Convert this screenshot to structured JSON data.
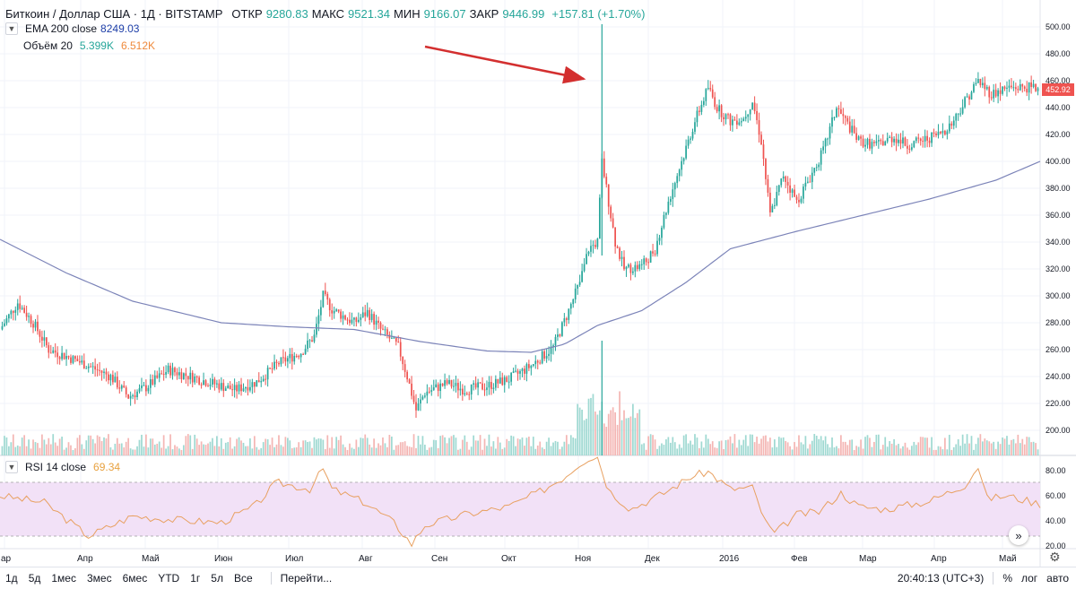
{
  "header": {
    "symbol": "Биткоин / Доллар США · 1Д · BITSTAMP",
    "open_label": "ОТКР",
    "open": "9280.83",
    "high_label": "МАКС",
    "high": "9521.34",
    "low_label": "МИН",
    "low": "9166.07",
    "close_label": "ЗАКР",
    "close": "9446.99",
    "change": "+157.81 (+1.70%)"
  },
  "indicators": {
    "ema_label": "EMA 200 close",
    "ema_value": "8249.03",
    "volume_label": "Объём 20",
    "volume_value1": "5.399K",
    "volume_value2": "6.512K",
    "rsi_label": "RSI 14 close",
    "rsi_value": "69.34"
  },
  "price_axis": [
    "500.00",
    "480.00",
    "460.00",
    "440.00",
    "420.00",
    "400.00",
    "380.00",
    "360.00",
    "340.00",
    "320.00",
    "300.00",
    "280.00",
    "260.00",
    "240.00",
    "220.00",
    "200.00"
  ],
  "rsi_axis": [
    "80.00",
    "60.00",
    "40.00",
    "20.00"
  ],
  "current_price": "452.92",
  "time_axis": [
    "ар",
    "Апр",
    "Май",
    "Июн",
    "Июл",
    "Авг",
    "Сен",
    "Окт",
    "Ноя",
    "Дек",
    "2016",
    "Фев",
    "Мар",
    "Апр",
    "Май"
  ],
  "bottom_bar": {
    "ranges": [
      "1д",
      "5д",
      "1мес",
      "3мес",
      "6мес",
      "YTD",
      "1г",
      "5л",
      "Все"
    ],
    "goto": "Перейти...",
    "time": "20:40:13 (UTC+3)",
    "percent": "%",
    "log": "лог",
    "auto": "авто"
  },
  "colors": {
    "up": "#26a69a",
    "down": "#ef5350",
    "ema": "#7b83b8",
    "rsi": "#e8a060",
    "rsi_band": "#f2e1f7",
    "arrow": "#d32f2f"
  },
  "chart_data": {
    "type": "candlestick",
    "symbol": "BTCUSD",
    "ylim": [
      190,
      505
    ],
    "months": [
      "Мар",
      "Апр",
      "Май",
      "Июн",
      "Июл",
      "Авг",
      "Сен",
      "Окт",
      "Ноя",
      "Дек",
      "2016",
      "Фев",
      "Мар",
      "Апр",
      "Май"
    ],
    "close_path": [
      [
        0,
        275
      ],
      [
        8,
        295
      ],
      [
        15,
        280
      ],
      [
        22,
        260
      ],
      [
        30,
        255
      ],
      [
        40,
        248
      ],
      [
        50,
        240
      ],
      [
        58,
        225
      ],
      [
        66,
        232
      ],
      [
        76,
        245
      ],
      [
        86,
        240
      ],
      [
        96,
        235
      ],
      [
        106,
        230
      ],
      [
        116,
        236
      ],
      [
        126,
        250
      ],
      [
        136,
        258
      ],
      [
        142,
        270
      ],
      [
        146,
        300
      ],
      [
        150,
        290
      ],
      [
        160,
        280
      ],
      [
        166,
        288
      ],
      [
        172,
        275
      ],
      [
        180,
        262
      ],
      [
        184,
        240
      ],
      [
        188,
        215
      ],
      [
        192,
        228
      ],
      [
        202,
        235
      ],
      [
        210,
        230
      ],
      [
        220,
        233
      ],
      [
        230,
        238
      ],
      [
        240,
        248
      ],
      [
        250,
        262
      ],
      [
        256,
        285
      ],
      [
        262,
        310
      ],
      [
        266,
        335
      ],
      [
        270,
        340
      ],
      [
        272,
        400
      ],
      [
        274,
        380
      ],
      [
        278,
        340
      ],
      [
        282,
        320
      ],
      [
        290,
        322
      ],
      [
        296,
        335
      ],
      [
        302,
        370
      ],
      [
        308,
        400
      ],
      [
        314,
        430
      ],
      [
        320,
        455
      ],
      [
        324,
        440
      ],
      [
        330,
        430
      ],
      [
        336,
        432
      ],
      [
        340,
        445
      ],
      [
        344,
        415
      ],
      [
        348,
        360
      ],
      [
        354,
        390
      ],
      [
        360,
        370
      ],
      [
        366,
        388
      ],
      [
        372,
        408
      ],
      [
        378,
        440
      ],
      [
        382,
        430
      ],
      [
        388,
        415
      ],
      [
        396,
        412
      ],
      [
        404,
        418
      ],
      [
        410,
        412
      ],
      [
        416,
        415
      ],
      [
        424,
        420
      ],
      [
        430,
        428
      ],
      [
        436,
        445
      ],
      [
        442,
        460
      ],
      [
        448,
        450
      ],
      [
        456,
        455
      ],
      [
        464,
        455
      ],
      [
        470,
        454
      ]
    ],
    "ema200_path": [
      [
        0,
        342
      ],
      [
        30,
        317
      ],
      [
        60,
        296
      ],
      [
        100,
        280
      ],
      [
        130,
        277
      ],
      [
        160,
        275
      ],
      [
        190,
        266
      ],
      [
        220,
        259
      ],
      [
        240,
        258
      ],
      [
        255,
        264
      ],
      [
        270,
        278
      ],
      [
        290,
        289
      ],
      [
        310,
        310
      ],
      [
        330,
        335
      ],
      [
        360,
        348
      ],
      [
        390,
        360
      ],
      [
        420,
        372
      ],
      [
        450,
        386
      ],
      [
        470,
        400
      ]
    ],
    "rsi_path": [
      [
        0,
        60
      ],
      [
        20,
        55
      ],
      [
        40,
        30
      ],
      [
        60,
        45
      ],
      [
        80,
        42
      ],
      [
        100,
        40
      ],
      [
        115,
        52
      ],
      [
        125,
        70
      ],
      [
        140,
        65
      ],
      [
        146,
        80
      ],
      [
        150,
        65
      ],
      [
        165,
        55
      ],
      [
        178,
        40
      ],
      [
        186,
        24
      ],
      [
        192,
        38
      ],
      [
        210,
        46
      ],
      [
        230,
        52
      ],
      [
        245,
        64
      ],
      [
        255,
        74
      ],
      [
        262,
        84
      ],
      [
        266,
        88
      ],
      [
        270,
        89
      ],
      [
        275,
        64
      ],
      [
        285,
        50
      ],
      [
        300,
        62
      ],
      [
        312,
        74
      ],
      [
        320,
        78
      ],
      [
        330,
        65
      ],
      [
        340,
        66
      ],
      [
        346,
        40
      ],
      [
        350,
        32
      ],
      [
        360,
        46
      ],
      [
        370,
        48
      ],
      [
        380,
        62
      ],
      [
        388,
        52
      ],
      [
        400,
        50
      ],
      [
        420,
        56
      ],
      [
        436,
        68
      ],
      [
        442,
        82
      ],
      [
        446,
        58
      ],
      [
        455,
        60
      ],
      [
        470,
        54
      ]
    ],
    "rsi_band": [
      30,
      70
    ],
    "annotation": "arrow pointing to November spike high near 500"
  }
}
